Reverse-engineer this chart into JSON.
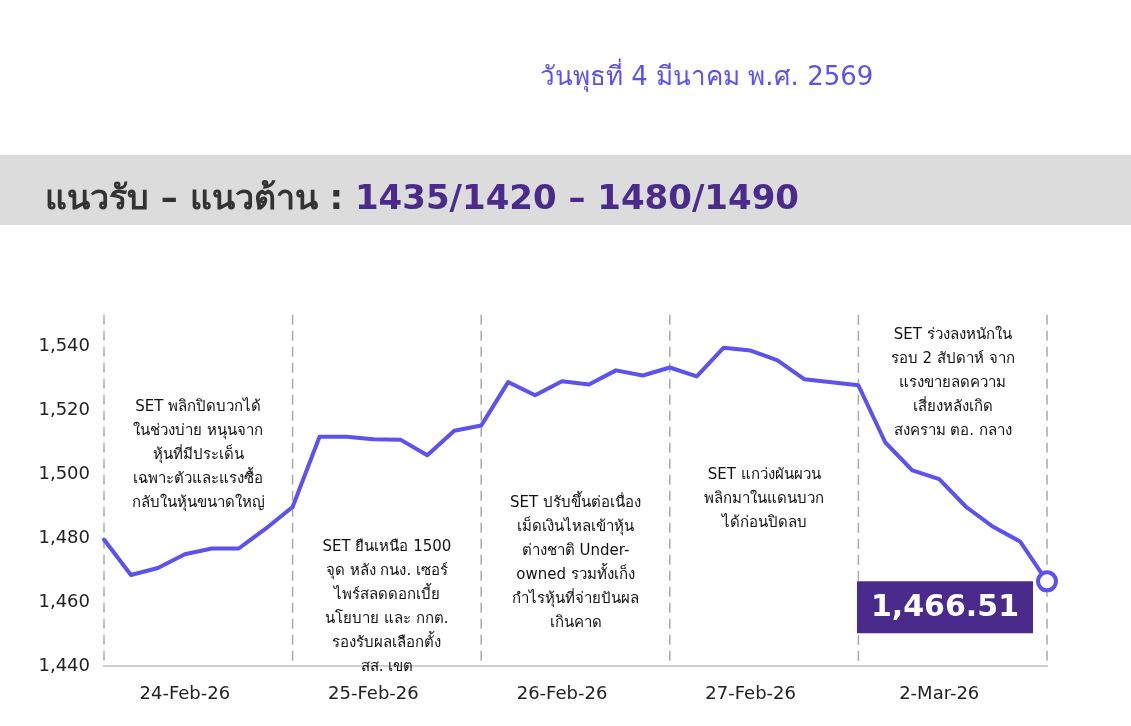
{
  "chart_data": {
    "type": "line",
    "title": "แนวรับ – แนวต้าน : 1435/1420 – 1480/1490",
    "subtitle": "วันพุธที่ 4 มีนาคม พ.ศ. 2569",
    "categories": [
      null,
      null,
      null,
      "24-Feb-26",
      null,
      null,
      null,
      null,
      null,
      null,
      "25-Feb-26",
      null,
      null,
      null,
      null,
      null,
      null,
      "26-Feb-26",
      null,
      null,
      null,
      null,
      null,
      null,
      "27-Feb-26",
      null,
      null,
      null,
      null,
      null,
      null,
      "2-Mar-26",
      null,
      null,
      null,
      null
    ],
    "series": [
      {
        "color": "#5b52f0",
        "values": [
          1479.6,
          1468.5,
          1470.7,
          1475,
          1476.8,
          1476.8,
          1483,
          1489.8,
          1511.8,
          1511.8,
          1511,
          1510.9,
          1506,
          1513.7,
          1515.3,
          1528.9,
          1524.8,
          1529.2,
          1528.2,
          1532.6,
          1531,
          1533.5,
          1530.7,
          1539.7,
          1538.8,
          1535.7,
          1529.8,
          1528.9,
          1527.9,
          1510,
          1501.3,
          1498.5,
          1489.8,
          1483.6,
          1479,
          1466.51
        ],
        "value_labels": [
          null,
          null,
          null,
          null,
          null,
          null,
          null,
          null,
          null,
          null,
          null,
          null,
          null,
          null,
          null,
          null,
          null,
          null,
          null,
          null,
          null,
          null,
          null,
          null,
          null,
          null,
          null,
          null,
          null,
          null,
          null,
          null,
          null,
          null,
          null,
          "1,466.51"
        ]
      }
    ],
    "ylim": [
      1440,
      1550
    ],
    "yticks": [
      {
        "value": 1440,
        "label": "1,440"
      },
      {
        "value": 1460,
        "label": "1,460"
      },
      {
        "value": 1480,
        "label": "1,480"
      },
      {
        "value": 1500,
        "label": "1,500"
      },
      {
        "value": 1520,
        "label": "1,520"
      },
      {
        "value": 1540,
        "label": "1,540"
      }
    ],
    "grid": "x",
    "legend": false,
    "line_style": "solid",
    "annotations": [
      "SET พลิกปิดบวกได้\nในช่วงบ่าย หนุนจาก\nหุ้นที่มีประเด็น\nเฉพาะตัวและแรงซื้อ\nกลับในหุ้นขนาดใหญ่",
      "SET ยืนเหนือ 1500\nจุด หลัง กนง. เซอร์\nไพร์สลดดอกเบี้ย\nนโยบาย และ กกต.\nรองรับผลเลือกตั้ง\nสส. เขต",
      "SET ปรับขึ้นต่อเนื่อง\nเม็ดเงินไหลเข้าหุ้น\nต่างชาติ Under-\nowned รวมทั้งเก็ง\nกำไรหุ้นที่จ่ายปันผล\nเกินคาด",
      "SET แกว่งผันผวน\nพลิกมาในแดนบวก\nได้ก่อนปิดลบ",
      "SET ร่วงลงหนักใน\nรอบ 2 สัปดาห์ จาก\nแรงขายลดความ\nเสี่ยงหลังเกิด\nสงคราม ตอ. กลาง"
    ]
  }
}
